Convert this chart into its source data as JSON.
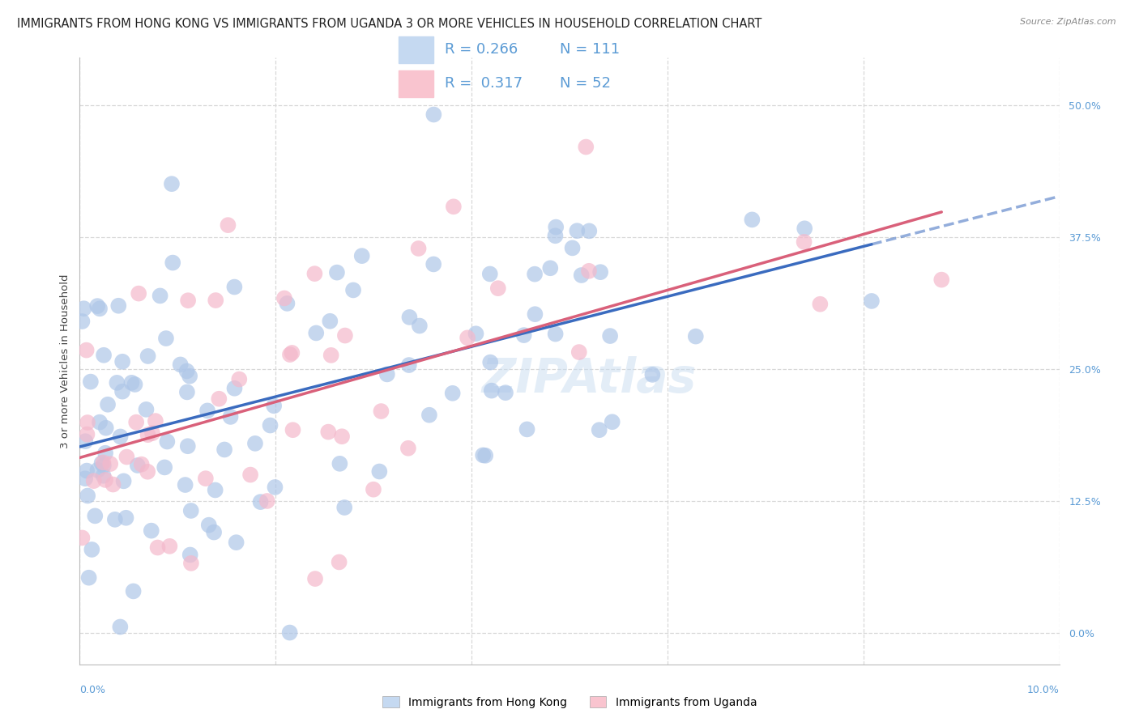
{
  "title": "IMMIGRANTS FROM HONG KONG VS IMMIGRANTS FROM UGANDA 3 OR MORE VEHICLES IN HOUSEHOLD CORRELATION CHART",
  "source": "Source: ZipAtlas.com",
  "ylabel": "3 or more Vehicles in Household",
  "ytick_vals": [
    0.0,
    0.125,
    0.25,
    0.375,
    0.5
  ],
  "ytick_labels": [
    "0.0%",
    "12.5%",
    "25.0%",
    "37.5%",
    "50.0%"
  ],
  "xmin": 0.0,
  "xmax": 0.1,
  "ymin": -0.03,
  "ymax": 0.545,
  "R_hk": 0.266,
  "N_hk": 111,
  "R_ug": 0.317,
  "N_ug": 52,
  "color_hk": "#aec6e8",
  "color_ug": "#f4b8cb",
  "line_color_hk": "#3a6bbf",
  "line_color_ug": "#d9607a",
  "watermark": "ZIPAtlas",
  "legend_box_color_hk": "#c5d9f1",
  "legend_box_color_ug": "#f9c4cf",
  "background_color": "#ffffff",
  "grid_color": "#d8d8d8",
  "title_fontsize": 10.5,
  "axis_label_fontsize": 9.5,
  "tick_fontsize": 9,
  "legend_fontsize": 13,
  "seed_hk": 42,
  "seed_ug": 7
}
